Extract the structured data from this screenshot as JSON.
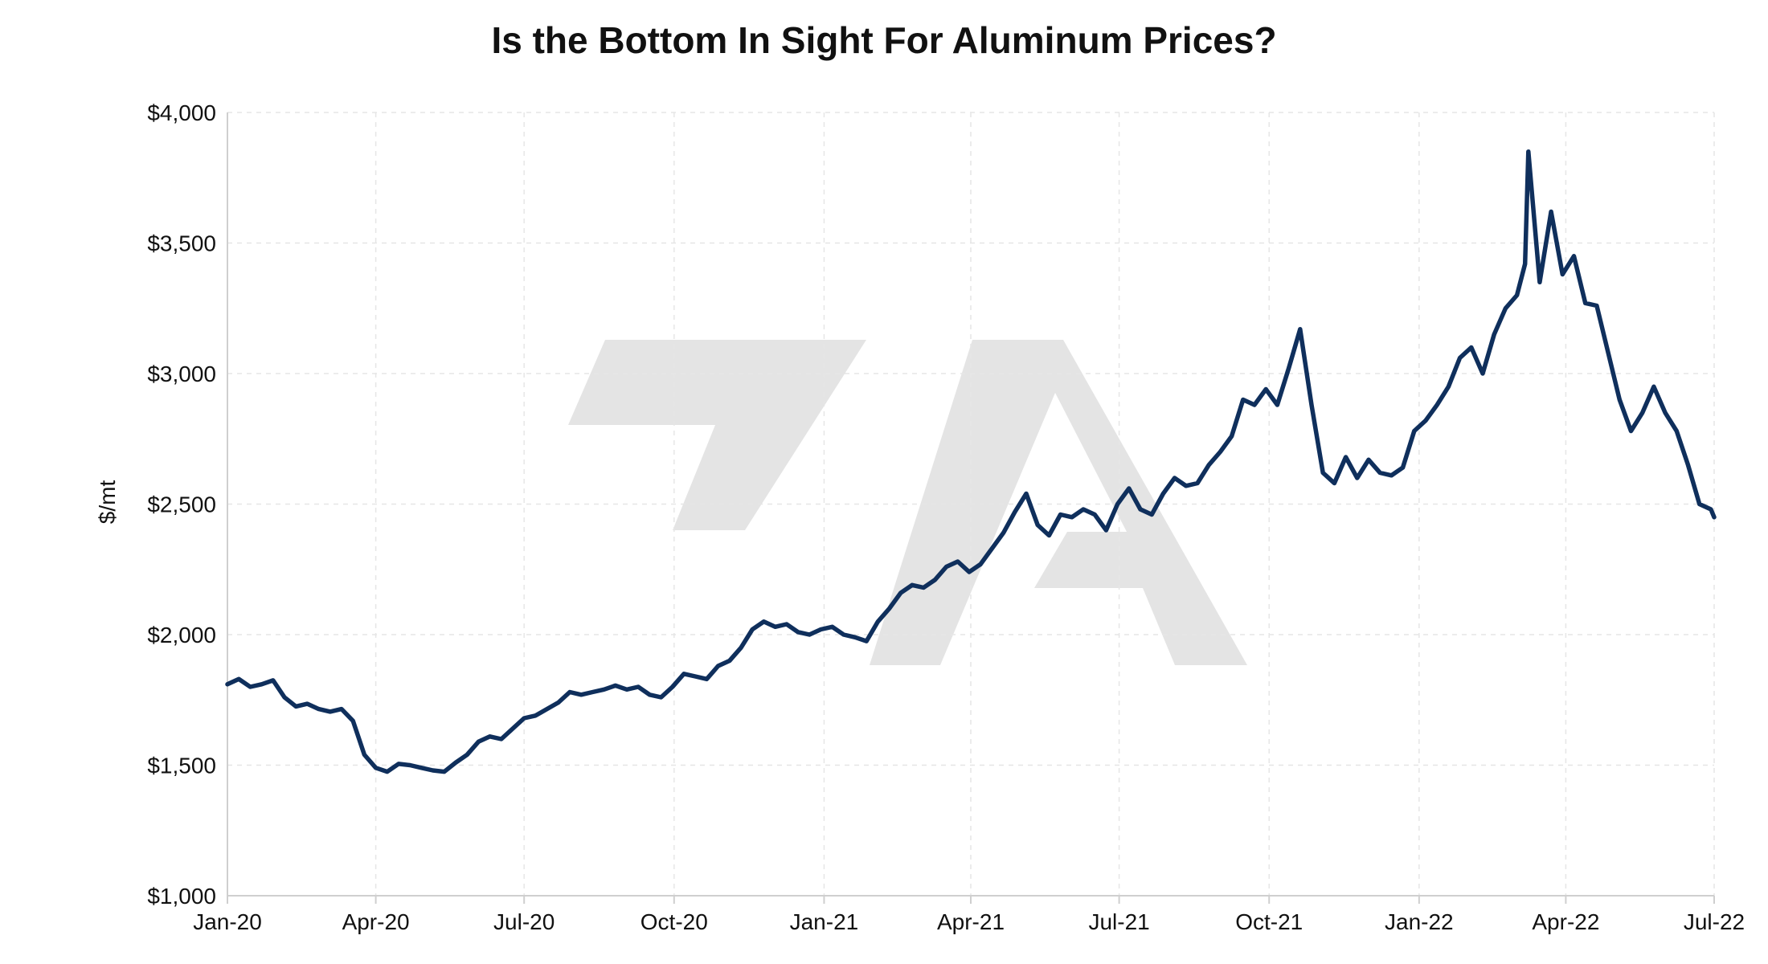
{
  "chart_data": {
    "type": "line",
    "title": "Is the Bottom In Sight For Aluminum Prices?",
    "xlabel": "",
    "ylabel": "$/mt",
    "x_tick_labels": [
      "Jan-20",
      "Apr-20",
      "Jul-20",
      "Oct-20",
      "Jan-21",
      "Apr-21",
      "Jul-21",
      "Oct-21",
      "Jan-22",
      "Apr-22",
      "Jul-22"
    ],
    "y_tick_labels": [
      "$1,000",
      "$1,500",
      "$2,000",
      "$2,500",
      "$3,000",
      "$3,500",
      "$4,000"
    ],
    "y_ticks": [
      1000,
      1500,
      2000,
      2500,
      3000,
      3500,
      4000
    ],
    "ylim": [
      1000,
      4000
    ],
    "xlim": [
      "2020-01-01",
      "2022-07-01"
    ],
    "grid": true,
    "colors": {
      "series": "#0f2f5c",
      "watermark": "#e4e4e4"
    },
    "series": [
      {
        "x": [
          "2020-01-01",
          "2020-01-08",
          "2020-01-15",
          "2020-01-22",
          "2020-01-29",
          "2020-02-05",
          "2020-02-12",
          "2020-02-19",
          "2020-02-26",
          "2020-03-04",
          "2020-03-11",
          "2020-03-18",
          "2020-03-25",
          "2020-04-01",
          "2020-04-08",
          "2020-04-15",
          "2020-04-22",
          "2020-04-29",
          "2020-05-06",
          "2020-05-13",
          "2020-05-20",
          "2020-05-27",
          "2020-06-03",
          "2020-06-10",
          "2020-06-17",
          "2020-06-24",
          "2020-07-01",
          "2020-07-08",
          "2020-07-15",
          "2020-07-22",
          "2020-07-29",
          "2020-08-05",
          "2020-08-12",
          "2020-08-19",
          "2020-08-26",
          "2020-09-02",
          "2020-09-09",
          "2020-09-16",
          "2020-09-23",
          "2020-09-30",
          "2020-10-07",
          "2020-10-14",
          "2020-10-21",
          "2020-10-28",
          "2020-11-04",
          "2020-11-11",
          "2020-11-18",
          "2020-11-25",
          "2020-12-02",
          "2020-12-09",
          "2020-12-16",
          "2020-12-23",
          "2020-12-30",
          "2021-01-06",
          "2021-01-13",
          "2021-01-20",
          "2021-01-27",
          "2021-02-03",
          "2021-02-10",
          "2021-02-17",
          "2021-02-24",
          "2021-03-03",
          "2021-03-10",
          "2021-03-17",
          "2021-03-24",
          "2021-03-31",
          "2021-04-07",
          "2021-04-14",
          "2021-04-21",
          "2021-04-28",
          "2021-05-05",
          "2021-05-12",
          "2021-05-19",
          "2021-05-26",
          "2021-06-02",
          "2021-06-09",
          "2021-06-16",
          "2021-06-23",
          "2021-06-30",
          "2021-07-07",
          "2021-07-14",
          "2021-07-21",
          "2021-07-28",
          "2021-08-04",
          "2021-08-11",
          "2021-08-18",
          "2021-08-25",
          "2021-09-01",
          "2021-09-08",
          "2021-09-15",
          "2021-09-22",
          "2021-09-29",
          "2021-10-06",
          "2021-10-13",
          "2021-10-20",
          "2021-10-27",
          "2021-11-03",
          "2021-11-10",
          "2021-11-17",
          "2021-11-24",
          "2021-12-01",
          "2021-12-08",
          "2021-12-15",
          "2021-12-22",
          "2021-12-29",
          "2022-01-05",
          "2022-01-12",
          "2022-01-19",
          "2022-01-26",
          "2022-02-02",
          "2022-02-09",
          "2022-02-16",
          "2022-02-23",
          "2022-03-02",
          "2022-03-07",
          "2022-03-09",
          "2022-03-16",
          "2022-03-23",
          "2022-03-30",
          "2022-04-06",
          "2022-04-13",
          "2022-04-20",
          "2022-04-27",
          "2022-05-04",
          "2022-05-11",
          "2022-05-18",
          "2022-05-25",
          "2022-06-01",
          "2022-06-08",
          "2022-06-15",
          "2022-06-22",
          "2022-06-29",
          "2022-07-01"
        ],
        "y": [
          1810,
          1830,
          1800,
          1810,
          1825,
          1760,
          1725,
          1735,
          1715,
          1705,
          1715,
          1670,
          1540,
          1490,
          1475,
          1505,
          1500,
          1490,
          1480,
          1475,
          1510,
          1540,
          1590,
          1610,
          1600,
          1640,
          1680,
          1690,
          1715,
          1740,
          1780,
          1770,
          1780,
          1790,
          1805,
          1790,
          1800,
          1770,
          1760,
          1800,
          1850,
          1840,
          1830,
          1880,
          1900,
          1950,
          2020,
          2050,
          2030,
          2040,
          2010,
          2000,
          2020,
          2030,
          2000,
          1990,
          1975,
          2050,
          2100,
          2160,
          2190,
          2180,
          2210,
          2260,
          2280,
          2240,
          2270,
          2330,
          2390,
          2470,
          2540,
          2420,
          2380,
          2460,
          2450,
          2480,
          2460,
          2400,
          2500,
          2560,
          2480,
          2460,
          2540,
          2600,
          2570,
          2580,
          2650,
          2700,
          2760,
          2900,
          2880,
          2940,
          2880,
          3020,
          3170,
          2880,
          2620,
          2580,
          2680,
          2600,
          2670,
          2620,
          2610,
          2640,
          2780,
          2820,
          2880,
          2950,
          3060,
          3100,
          3000,
          3150,
          3250,
          3300,
          3420,
          3850,
          3350,
          3620,
          3380,
          3450,
          3270,
          3260,
          3080,
          2900,
          2780,
          2850,
          2950,
          2850,
          2780,
          2650,
          2500,
          2480,
          2450
        ]
      }
    ]
  }
}
